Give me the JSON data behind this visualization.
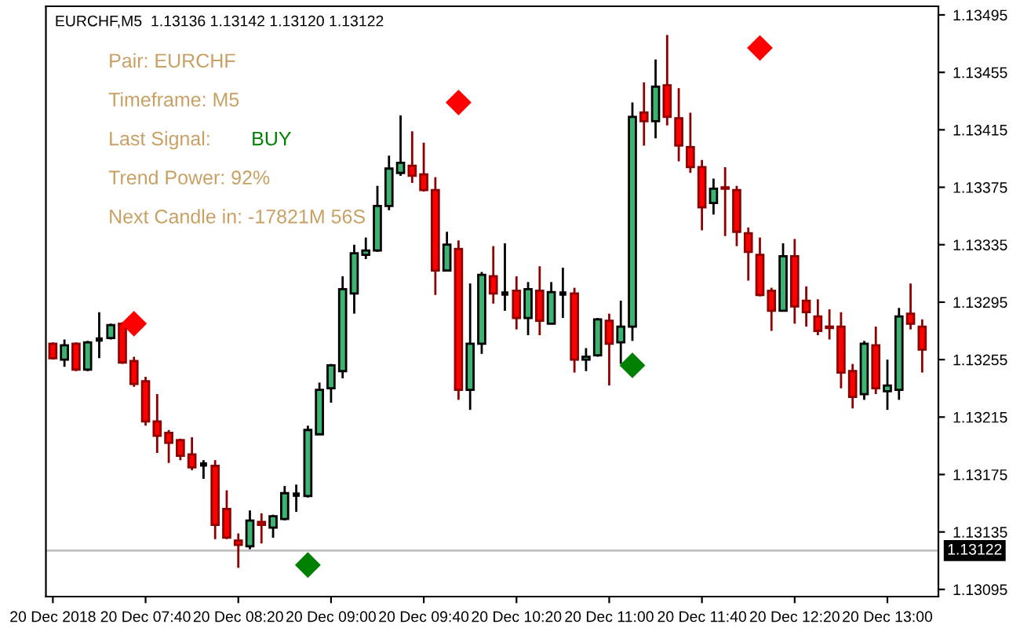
{
  "chart_data": {
    "type": "candlestick",
    "title": "EURCHF,M5  1.13136 1.13142 1.13120 1.13122",
    "categories": [
      "20 Dec 2018",
      null,
      null,
      null,
      null,
      null,
      null,
      null,
      "20 Dec 07:40",
      null,
      null,
      null,
      null,
      null,
      null,
      null,
      "20 Dec 08:20",
      null,
      null,
      null,
      null,
      null,
      null,
      null,
      "20 Dec 09:00",
      null,
      null,
      null,
      null,
      null,
      null,
      null,
      "20 Dec 09:40",
      null,
      null,
      null,
      null,
      null,
      null,
      null,
      "20 Dec 10:20",
      null,
      null,
      null,
      null,
      null,
      null,
      null,
      "20 Dec 11:00",
      null,
      null,
      null,
      null,
      null,
      null,
      null,
      "20 Dec 11:40",
      null,
      null,
      null,
      null,
      null,
      null,
      null,
      "20 Dec 12:20",
      null,
      null,
      null,
      null,
      null,
      null,
      null,
      "20 Dec 13:00",
      null,
      null,
      null
    ],
    "ohlc": [
      [
        1.13266,
        1.13267,
        1.13255,
        1.13256
      ],
      [
        1.13255,
        1.13269,
        1.1325,
        1.13265
      ],
      [
        1.13266,
        1.13267,
        1.13247,
        1.13248
      ],
      [
        1.13248,
        1.13268,
        1.13247,
        1.13267
      ],
      [
        1.13269,
        1.13288,
        1.13256,
        1.13269
      ],
      [
        1.1327,
        1.1328,
        1.13269,
        1.13279
      ],
      [
        1.1328,
        1.13281,
        1.13252,
        1.13253
      ],
      [
        1.13254,
        1.13257,
        1.13236,
        1.13238
      ],
      [
        1.1324,
        1.13243,
        1.13209,
        1.13212
      ],
      [
        1.13212,
        1.13231,
        1.1319,
        1.13202
      ],
      [
        1.13204,
        1.13206,
        1.13183,
        1.13197
      ],
      [
        1.13199,
        1.132,
        1.13185,
        1.13188
      ],
      [
        1.13189,
        1.13201,
        1.13178,
        1.1318
      ],
      [
        1.13182,
        1.13185,
        1.13172,
        1.13182
      ],
      [
        1.13181,
        1.13185,
        1.1313,
        1.1314
      ],
      [
        1.13151,
        1.13164,
        1.1313,
        1.13131
      ],
      [
        1.13129,
        1.13134,
        1.1311,
        1.13126
      ],
      [
        1.13125,
        1.1315,
        1.13123,
        1.13143
      ],
      [
        1.13142,
        1.13148,
        1.13127,
        1.1314
      ],
      [
        1.13138,
        1.13147,
        1.13131,
        1.13146
      ],
      [
        1.13144,
        1.13167,
        1.13143,
        1.13162
      ],
      [
        1.13161,
        1.13168,
        1.13149,
        1.13161
      ],
      [
        1.1316,
        1.13209,
        1.13159,
        1.13206
      ],
      [
        1.13203,
        1.13239,
        1.13203,
        1.13234
      ],
      [
        1.13235,
        1.13252,
        1.13225,
        1.13251
      ],
      [
        1.13247,
        1.13313,
        1.13242,
        1.13304
      ],
      [
        1.13301,
        1.13335,
        1.13287,
        1.13329
      ],
      [
        1.13328,
        1.1334,
        1.13325,
        1.13331
      ],
      [
        1.13331,
        1.13376,
        1.1333,
        1.13362
      ],
      [
        1.13362,
        1.13397,
        1.13359,
        1.13388
      ],
      [
        1.13385,
        1.13425,
        1.13383,
        1.13392
      ],
      [
        1.1339,
        1.13414,
        1.13378,
        1.13383
      ],
      [
        1.13384,
        1.13406,
        1.13372,
        1.13373
      ],
      [
        1.13373,
        1.13382,
        1.133,
        1.13317
      ],
      [
        1.13317,
        1.13344,
        1.13317,
        1.13335
      ],
      [
        1.13332,
        1.13338,
        1.13227,
        1.13234
      ],
      [
        1.13234,
        1.13308,
        1.1322,
        1.13266
      ],
      [
        1.13266,
        1.13316,
        1.13259,
        1.13314
      ],
      [
        1.13313,
        1.13334,
        1.13294,
        1.13301
      ],
      [
        1.13301,
        1.13336,
        1.13289,
        1.13301
      ],
      [
        1.13303,
        1.13313,
        1.13276,
        1.13284
      ],
      [
        1.13284,
        1.13309,
        1.13272,
        1.13304
      ],
      [
        1.13303,
        1.1332,
        1.13272,
        1.13282
      ],
      [
        1.1328,
        1.13309,
        1.1328,
        1.13302
      ],
      [
        1.13301,
        1.13319,
        1.13284,
        1.13301
      ],
      [
        1.13301,
        1.13305,
        1.13246,
        1.13255
      ],
      [
        1.13255,
        1.13263,
        1.13247,
        1.13257
      ],
      [
        1.13258,
        1.13284,
        1.13257,
        1.13283
      ],
      [
        1.13282,
        1.13287,
        1.13237,
        1.13266
      ],
      [
        1.13267,
        1.13296,
        1.13252,
        1.13278
      ],
      [
        1.13278,
        1.13434,
        1.13268,
        1.13424
      ],
      [
        1.13427,
        1.13448,
        1.13404,
        1.13421
      ],
      [
        1.13421,
        1.13464,
        1.13409,
        1.13445
      ],
      [
        1.13446,
        1.13481,
        1.13418,
        1.13424
      ],
      [
        1.13423,
        1.13444,
        1.13393,
        1.13404
      ],
      [
        1.13403,
        1.13427,
        1.13385,
        1.13389
      ],
      [
        1.13389,
        1.13394,
        1.13345,
        1.13361
      ],
      [
        1.13364,
        1.13381,
        1.13356,
        1.13374
      ],
      [
        1.13375,
        1.13389,
        1.13341,
        1.13374
      ],
      [
        1.13373,
        1.13376,
        1.13334,
        1.13344
      ],
      [
        1.13343,
        1.13347,
        1.1331,
        1.1333
      ],
      [
        1.13328,
        1.1334,
        1.13299,
        1.133
      ],
      [
        1.13303,
        1.13305,
        1.13275,
        1.13289
      ],
      [
        1.13289,
        1.13336,
        1.13289,
        1.13327
      ],
      [
        1.13327,
        1.13339,
        1.1328,
        1.13292
      ],
      [
        1.13296,
        1.13306,
        1.13278,
        1.13288
      ],
      [
        1.13285,
        1.13297,
        1.13272,
        1.13275
      ],
      [
        1.13278,
        1.1329,
        1.13269,
        1.13277
      ],
      [
        1.13278,
        1.13288,
        1.13235,
        1.13246
      ],
      [
        1.13247,
        1.13252,
        1.13221,
        1.13229
      ],
      [
        1.13231,
        1.13268,
        1.13227,
        1.13266
      ],
      [
        1.13265,
        1.13278,
        1.13231,
        1.13235
      ],
      [
        1.13233,
        1.13255,
        1.1322,
        1.13237
      ],
      [
        1.13234,
        1.13291,
        1.13227,
        1.13285
      ],
      [
        1.13287,
        1.13308,
        1.13276,
        1.1328
      ],
      [
        1.13278,
        1.13283,
        1.13246,
        1.13262
      ]
    ],
    "colors": [
      "#ff0000",
      "#3cb371",
      "#ff0000",
      "#3cb371",
      "#000000",
      "#3cb371",
      "#ff0000",
      "#ff0000",
      "#ff0000",
      "#ff0000",
      "#ff0000",
      "#ff0000",
      "#ff0000",
      "#000000",
      "#ff0000",
      "#ff0000",
      "#ff0000",
      "#3cb371",
      "#ff0000",
      "#3cb371",
      "#3cb371",
      "#000000",
      "#3cb371",
      "#3cb371",
      "#3cb371",
      "#3cb371",
      "#3cb371",
      "#3cb371",
      "#3cb371",
      "#3cb371",
      "#3cb371",
      "#ff0000",
      "#ff0000",
      "#ff0000",
      "#3cb371",
      "#ff0000",
      "#3cb371",
      "#3cb371",
      "#ff0000",
      "#000000",
      "#ff0000",
      "#3cb371",
      "#ff0000",
      "#3cb371",
      "#000000",
      "#ff0000",
      "#3cb371",
      "#3cb371",
      "#ff0000",
      "#3cb371",
      "#3cb371",
      "#ff0000",
      "#3cb371",
      "#ff0000",
      "#ff0000",
      "#ff0000",
      "#ff0000",
      "#3cb371",
      "#ff0000",
      "#ff0000",
      "#ff0000",
      "#ff0000",
      "#ff0000",
      "#3cb371",
      "#ff0000",
      "#ff0000",
      "#ff0000",
      "#ff0000",
      "#ff0000",
      "#ff0000",
      "#3cb371",
      "#ff0000",
      "#3cb371",
      "#3cb371",
      "#ff0000",
      "#ff0000"
    ],
    "series": [
      {
        "type": "scatter",
        "marker": "diamond",
        "color": "#ff0000",
        "values": [
          null,
          null,
          null,
          null,
          null,
          null,
          null,
          1.1328,
          null,
          null,
          null,
          null,
          null,
          null,
          null,
          null,
          null,
          null,
          null,
          null,
          null,
          null,
          null,
          null,
          null,
          null,
          null,
          null,
          null,
          null,
          null,
          null,
          null,
          null,
          null,
          1.13434,
          null,
          null,
          null,
          null,
          null,
          null,
          null,
          null,
          null,
          null,
          null,
          null,
          null,
          null,
          null,
          null,
          null,
          null,
          null,
          null,
          null,
          null,
          null,
          null,
          null,
          1.13472,
          null,
          null,
          null,
          null,
          null,
          null,
          null,
          null,
          null,
          null,
          null,
          null,
          null,
          null
        ]
      },
      {
        "type": "scatter",
        "marker": "diamond",
        "color": "#008000",
        "values": [
          null,
          null,
          null,
          null,
          null,
          null,
          null,
          null,
          null,
          null,
          null,
          null,
          null,
          null,
          null,
          null,
          null,
          null,
          null,
          null,
          null,
          null,
          1.13112,
          null,
          null,
          null,
          null,
          null,
          null,
          null,
          null,
          null,
          null,
          null,
          null,
          null,
          null,
          null,
          null,
          null,
          null,
          null,
          null,
          null,
          null,
          null,
          null,
          null,
          null,
          null,
          1.13251,
          null,
          null,
          null,
          null,
          null,
          null,
          null,
          null,
          null,
          null,
          null,
          null,
          null,
          null,
          null,
          null,
          null,
          null,
          null,
          null,
          null,
          null,
          null,
          null,
          null
        ]
      }
    ],
    "ylim": [
      1.1309,
      1.13501
    ],
    "yticks": [
      1.13095,
      1.13135,
      1.13175,
      1.13215,
      1.13255,
      1.13295,
      1.13335,
      1.13375,
      1.13415,
      1.13455,
      1.13495
    ],
    "ref_lines": [
      {
        "axis": "y",
        "value": 1.13122,
        "label": "1.13122",
        "color": "#c0c0c0"
      }
    ],
    "annotations": [
      "Pair: EURCHF",
      "Timeframe: M5",
      "Last Signal:",
      "BUY",
      "Trend Power: 92%",
      "Next Candle in: -17821M 56S"
    ],
    "grid": false,
    "legend": false
  }
}
